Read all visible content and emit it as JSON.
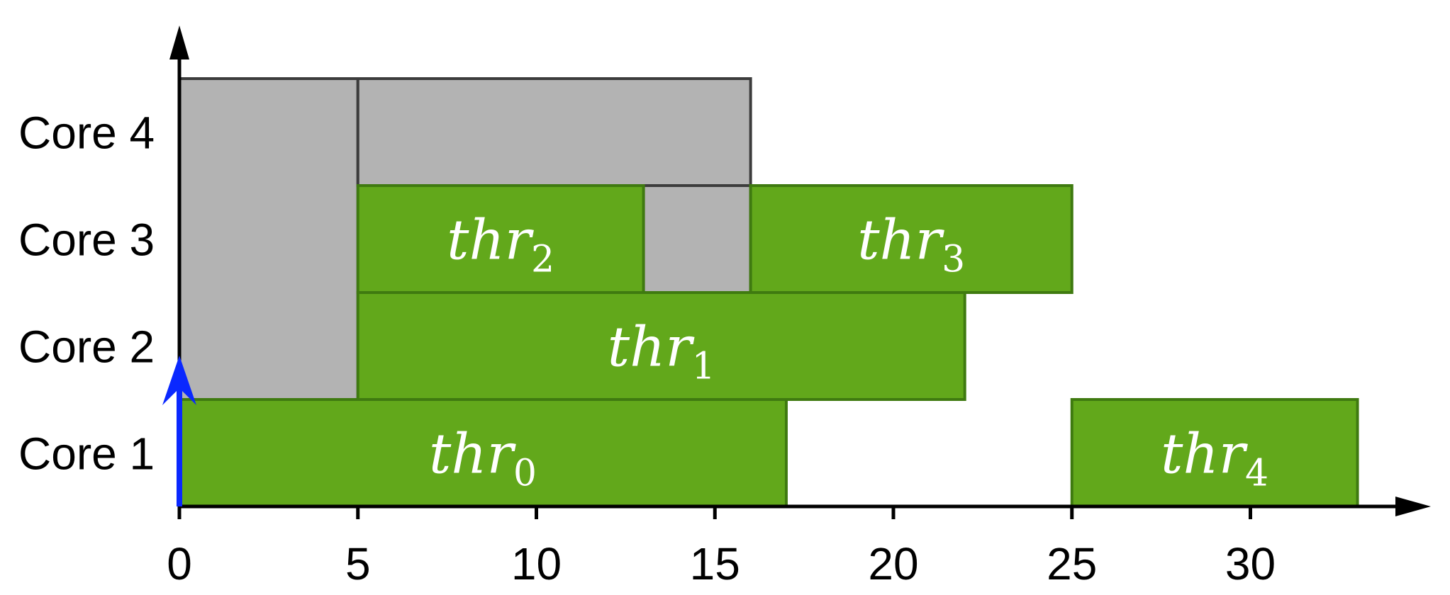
{
  "chart_data": {
    "type": "gantt",
    "title": "",
    "xlabel": "",
    "ylabel": "",
    "xlim": [
      0,
      34
    ],
    "x_ticks": [
      "0",
      "5",
      "10",
      "15",
      "20",
      "25",
      "30"
    ],
    "cores": [
      "Core 1",
      "Core 2",
      "Core 3",
      "Core 4"
    ],
    "threads": [
      {
        "base": "thr",
        "sub": "0",
        "core": 1,
        "start": 0,
        "end": 17
      },
      {
        "base": "thr",
        "sub": "1",
        "core": 2,
        "start": 5,
        "end": 22
      },
      {
        "base": "thr",
        "sub": "2",
        "core": 3,
        "start": 5,
        "end": 13
      },
      {
        "base": "thr",
        "sub": "3",
        "core": 3,
        "start": 16,
        "end": 25
      },
      {
        "base": "thr",
        "sub": "4",
        "core": 1,
        "start": 25,
        "end": 33
      }
    ],
    "reserved_blocks": [
      {
        "start": 0,
        "end": 5,
        "core_from": 2,
        "core_to": 4
      },
      {
        "start": 5,
        "end": 16,
        "core_from": 4,
        "core_to": 4
      },
      {
        "start": 13,
        "end": 16,
        "core_from": 3,
        "core_to": 3
      }
    ],
    "marker": {
      "x": 0,
      "core": 2,
      "shape": "up-arrow"
    },
    "colors": {
      "thread_fill": "#62a81b",
      "thread_stroke": "#3f7a10",
      "reserved_fill": "#b3b3b3",
      "reserved_stroke": "#3c3c3c",
      "marker": "#0a28ff",
      "axis": "#000000"
    }
  }
}
